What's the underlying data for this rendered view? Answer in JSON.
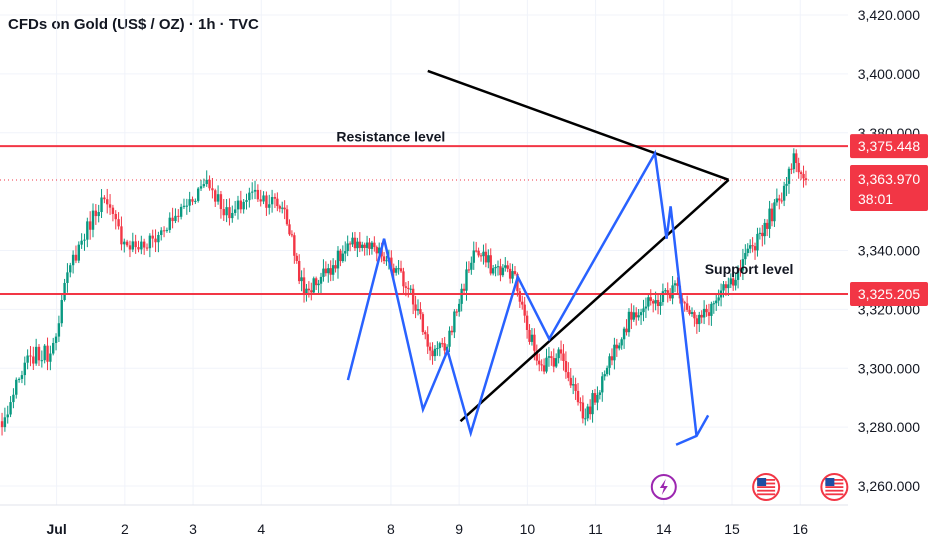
{
  "chart_data": {
    "type": "candlestick",
    "title": "CFDs on Gold (US$ / OZ) · 1h · TVC",
    "ylim": [
      3255,
      3422
    ],
    "y_ticks": [
      3420,
      3400,
      3380,
      3340,
      3320,
      3300,
      3280,
      3260
    ],
    "y_tick_labels": [
      "3,420.000",
      "3,400.000",
      "3,380.000",
      "3,340.000",
      "3,320.000",
      "3,300.000",
      "3,280.000",
      "3,260.000"
    ],
    "x_ticks": [
      {
        "label": "Jul",
        "x": 0,
        "bold": true
      },
      {
        "label": "2",
        "x": 1
      },
      {
        "label": "3",
        "x": 2
      },
      {
        "label": "4",
        "x": 3
      },
      {
        "label": "8",
        "x": 4.9
      },
      {
        "label": "9",
        "x": 5.9
      },
      {
        "label": "10",
        "x": 6.9
      },
      {
        "label": "11",
        "x": 7.9
      },
      {
        "label": "14",
        "x": 8.9
      },
      {
        "label": "15",
        "x": 9.9
      },
      {
        "label": "16",
        "x": 10.9
      }
    ],
    "xlim": [
      -0.83,
      11.6
    ],
    "horizontal_levels": [
      {
        "name": "Resistance level",
        "value": 3375.448,
        "label": "3,375.448",
        "color": "#f23645"
      },
      {
        "name": "Support level",
        "value": 3325.205,
        "label": "3,325.205",
        "color": "#f23645"
      }
    ],
    "current_price": {
      "value": 3363.97,
      "label": "3,363.970",
      "countdown": "38:01",
      "color": "#f23645"
    },
    "annotations": [
      {
        "text": "Resistance level",
        "x": 4.1,
        "y": 3377
      },
      {
        "text": "Support level",
        "x": 9.5,
        "y": 3332
      }
    ],
    "triangle": {
      "color": "#000000",
      "lines": [
        [
          [
            5.44,
            3401
          ],
          [
            9.85,
            3364
          ]
        ],
        [
          [
            5.92,
            3282
          ],
          [
            9.85,
            3364
          ]
        ]
      ]
    },
    "pattern": {
      "color": "#2962ff",
      "points": [
        [
          4.27,
          3296
        ],
        [
          4.8,
          3344
        ],
        [
          5.37,
          3286
        ],
        [
          5.73,
          3306
        ],
        [
          6.07,
          3278
        ],
        [
          6.76,
          3331
        ],
        [
          7.22,
          3310
        ],
        [
          8.77,
          3373
        ],
        [
          8.94,
          3344
        ],
        [
          9.0,
          3355
        ],
        [
          9.38,
          3277
        ],
        [
          9.08,
          3274
        ],
        [
          9.38,
          3277
        ],
        [
          9.55,
          3284
        ]
      ]
    },
    "events": [
      {
        "type": "lightning",
        "x": 8.9,
        "color": "#9c27b0"
      },
      {
        "type": "us-flag",
        "x": 10.4
      },
      {
        "type": "us-flag",
        "x": 11.4
      }
    ],
    "candles": {
      "up_color": "#089981",
      "down_color": "#f23645",
      "anchors": [
        [
          0,
          3280
        ],
        [
          4,
          3291
        ],
        [
          10,
          3304
        ],
        [
          17,
          3305
        ],
        [
          24,
          3335
        ],
        [
          35,
          3358
        ],
        [
          43,
          3343
        ],
        [
          50,
          3341
        ],
        [
          60,
          3350
        ],
        [
          72,
          3364
        ],
        [
          80,
          3351
        ],
        [
          88,
          3360
        ],
        [
          100,
          3354
        ],
        [
          108,
          3325
        ],
        [
          118,
          3334
        ],
        [
          130,
          3343
        ],
        [
          140,
          3338
        ],
        [
          152,
          3327
        ],
        [
          160,
          3306
        ],
        [
          166,
          3306
        ],
        [
          178,
          3340
        ],
        [
          186,
          3334
        ],
        [
          194,
          3333
        ],
        [
          200,
          3313
        ],
        [
          206,
          3301
        ],
        [
          214,
          3305
        ],
        [
          224,
          3283
        ],
        [
          232,
          3298
        ],
        [
          236,
          3308
        ],
        [
          244,
          3319
        ],
        [
          252,
          3322
        ],
        [
          262,
          3328
        ],
        [
          270,
          3315
        ],
        [
          278,
          3323
        ],
        [
          286,
          3330
        ],
        [
          296,
          3346
        ],
        [
          304,
          3357
        ],
        [
          310,
          3373
        ],
        [
          313,
          3366
        ],
        [
          315,
          3363.97
        ]
      ],
      "day_starts": [
        0,
        24,
        48,
        72,
        96,
        120,
        144,
        168,
        192,
        216,
        240,
        264,
        288
      ]
    }
  }
}
